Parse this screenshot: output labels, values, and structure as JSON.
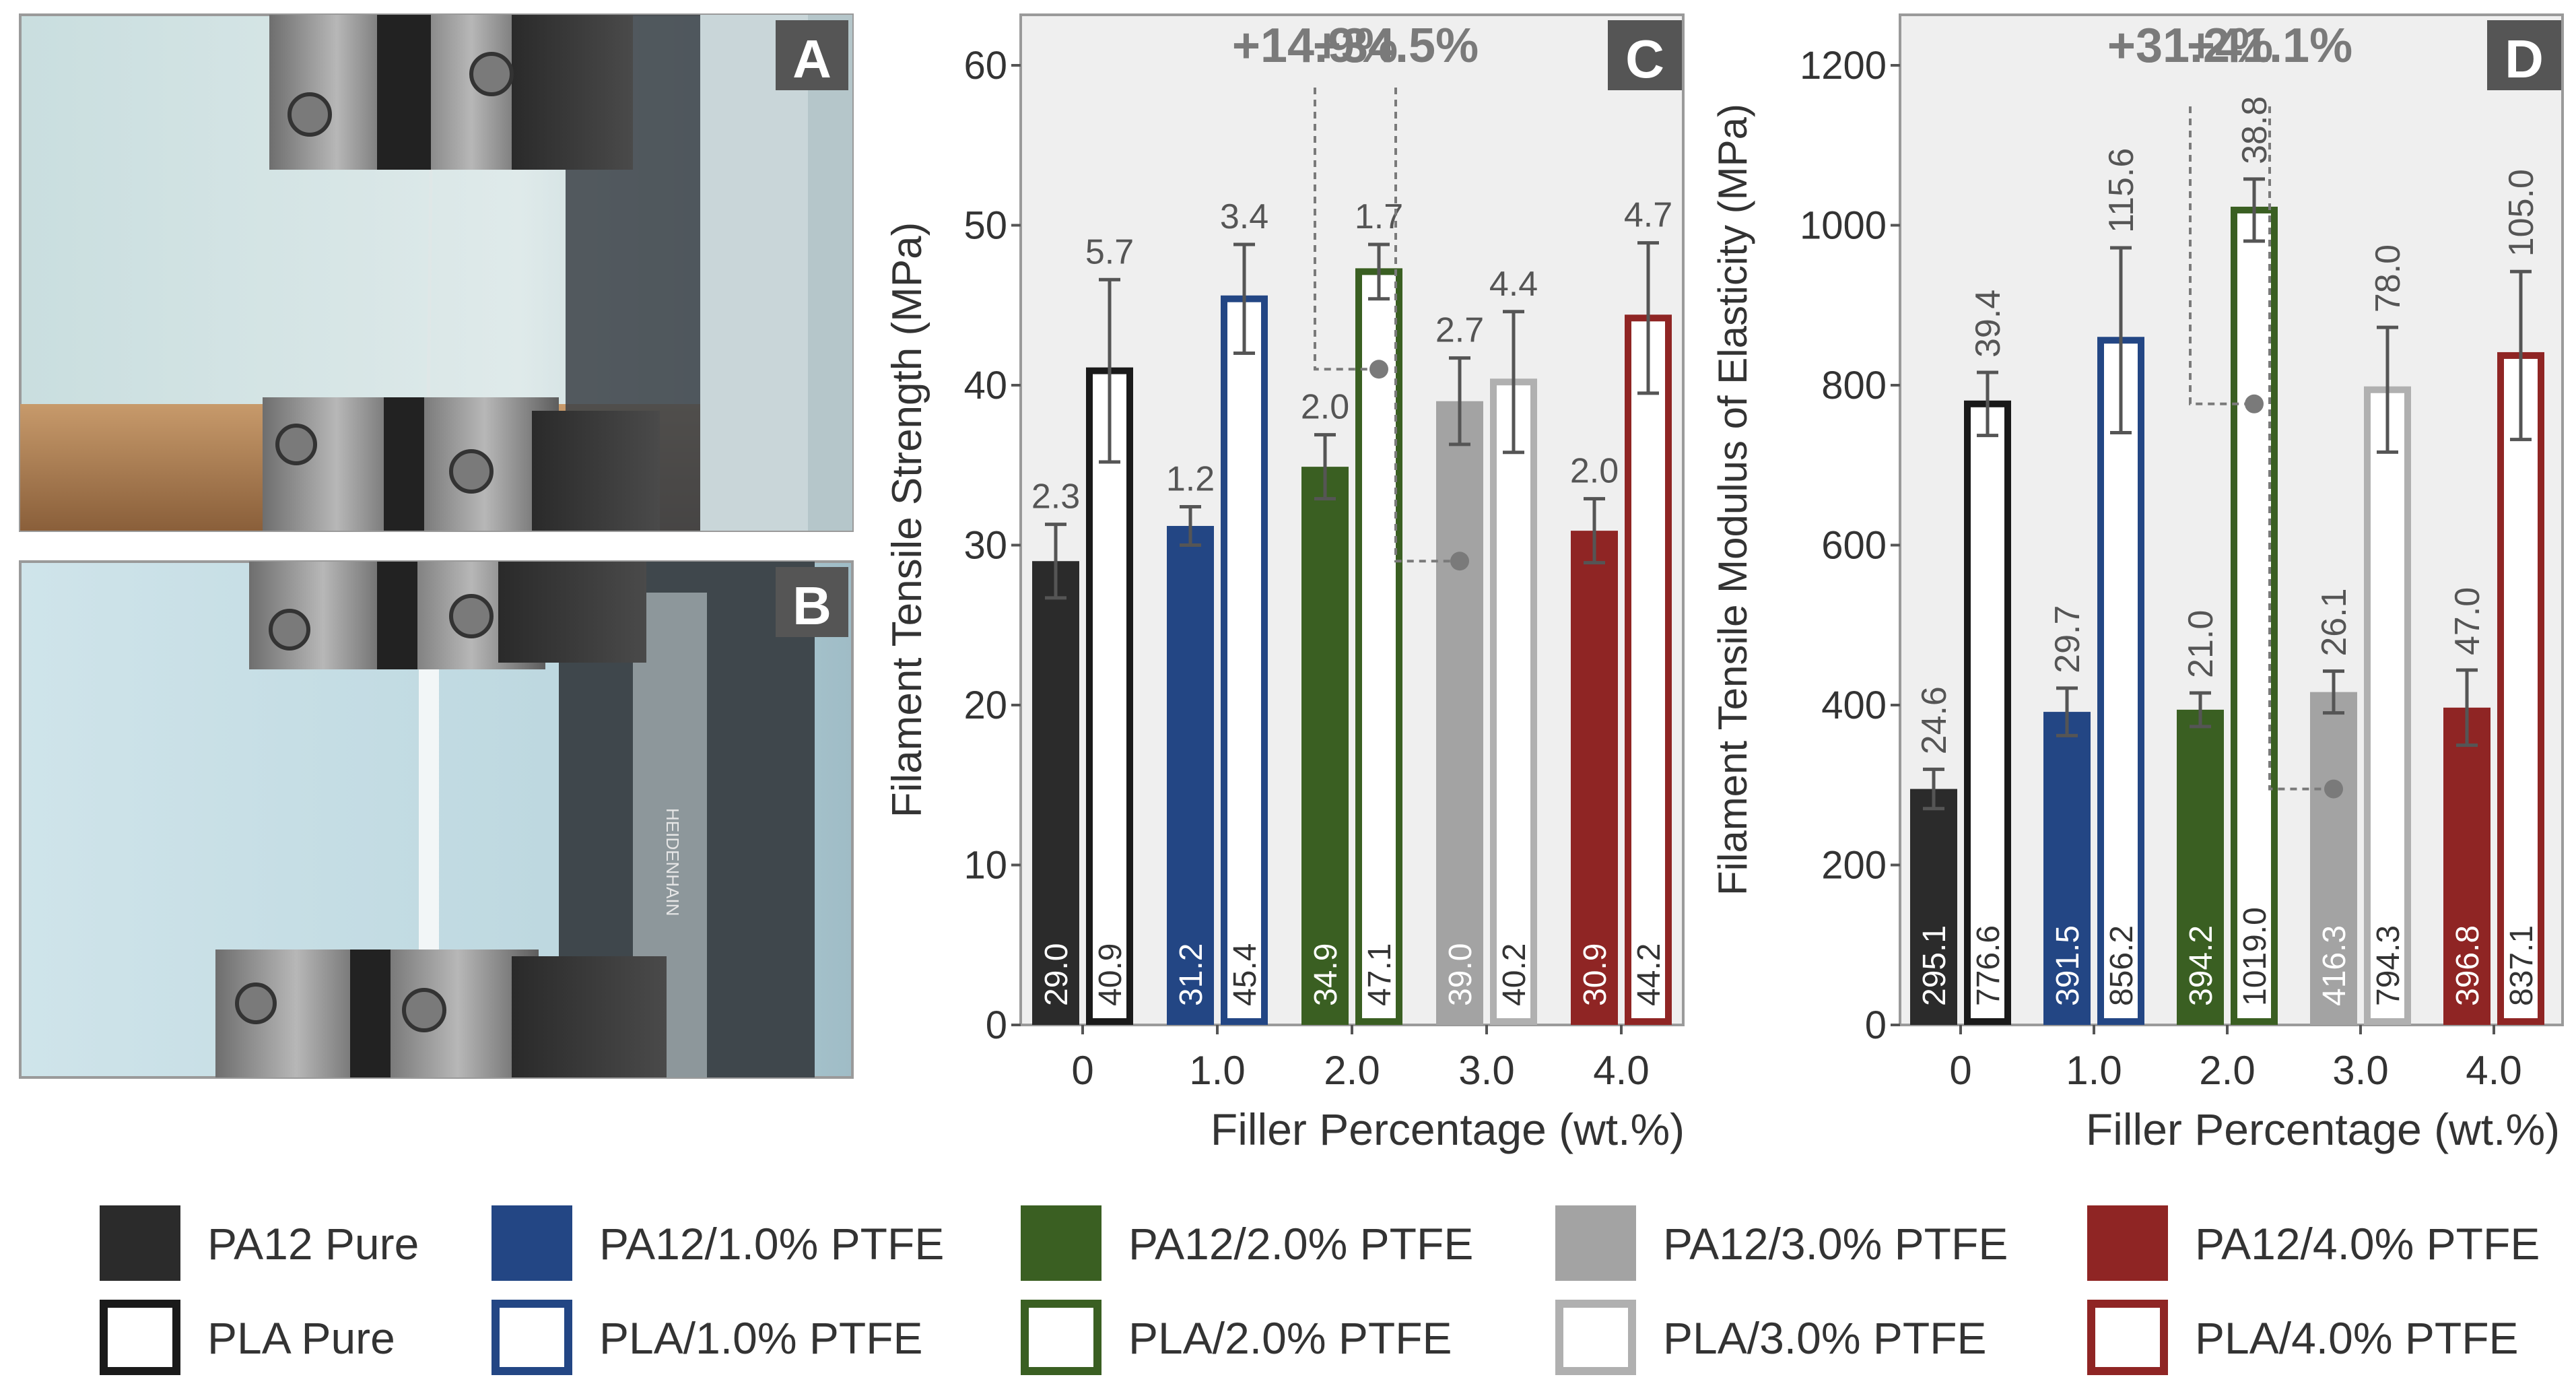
{
  "panels": {
    "photo_a": {
      "letter": "A"
    },
    "photo_b": {
      "letter": "B"
    },
    "photo_b_scale_label": "HEIDENHAIN"
  },
  "colors": {
    "PA12 Pure": "#2b2b2b",
    "PA12/1.0% PTFE": "#234684",
    "PA12/2.0% PTFE": "#3a5f22",
    "PA12/3.0% PTFE": "#a3a3a3",
    "PA12/4.0% PTFE": "#8f2524",
    "PLA Pure": "#1a1a1a",
    "PLA/1.0% PTFE": "#234684",
    "PLA/2.0% PTFE": "#3a5f22",
    "PLA/3.0% PTFE": "#b0b0b0",
    "PLA/4.0% PTFE": "#8f2524",
    "plot_bg": "#efefef",
    "annotation": "#7a7a7a"
  },
  "chart_data": [
    {
      "type": "bar",
      "panel_letter": "C",
      "xlabel": "Filler Percentage (wt.%)",
      "ylabel": "Filament Tensile Strength (MPa)",
      "categories": [
        "0",
        "1.0",
        "2.0",
        "3.0",
        "4.0"
      ],
      "ylim": [
        0,
        60
      ],
      "yticks": [
        "0",
        "10",
        "20",
        "30",
        "40",
        "50",
        "60"
      ],
      "series": [
        {
          "name": "PA12",
          "fill": "solid",
          "values": [
            29.0,
            31.2,
            34.9,
            39.0,
            30.9
          ],
          "value_labels": [
            "29.0",
            "31.2",
            "34.9",
            "39.0",
            "30.9"
          ],
          "errors": [
            2.3,
            1.2,
            2.0,
            2.7,
            2.0
          ],
          "error_labels": [
            "2.3",
            "1.2",
            "2.0",
            "2.7",
            "2.0"
          ]
        },
        {
          "name": "PLA",
          "fill": "outline",
          "values": [
            40.9,
            45.4,
            47.1,
            40.2,
            44.2
          ],
          "value_labels": [
            "40.9",
            "45.4",
            "47.1",
            "40.2",
            "44.2"
          ],
          "errors": [
            5.7,
            3.4,
            1.7,
            4.4,
            4.7
          ],
          "error_labels": [
            "5.7",
            "3.4",
            "1.7",
            "4.4",
            "4.7"
          ]
        }
      ],
      "annotations": [
        {
          "text": "+14.9%",
          "category": "2.0",
          "series": "PLA",
          "reference_value": 41.0
        },
        {
          "text": "+34.5%",
          "category": "3.0",
          "series": "PA12",
          "reference_value": 29.0
        }
      ]
    },
    {
      "type": "bar",
      "panel_letter": "D",
      "xlabel": "Filler Percentage (wt.%)",
      "ylabel": "Filament Tensile Modulus of Elasticity (MPa)",
      "categories": [
        "0",
        "1.0",
        "2.0",
        "3.0",
        "4.0"
      ],
      "ylim": [
        0,
        1200
      ],
      "yticks": [
        "0",
        "200",
        "400",
        "600",
        "800",
        "1000",
        "1200"
      ],
      "series": [
        {
          "name": "PA12",
          "fill": "solid",
          "values": [
            295.1,
            391.5,
            394.2,
            416.3,
            396.8
          ],
          "value_labels": [
            "295.1",
            "391.5",
            "394.2",
            "416.3",
            "396.8"
          ],
          "errors": [
            24.6,
            29.7,
            21.0,
            26.1,
            47.0
          ],
          "error_labels": [
            "24.6",
            "29.7",
            "21.0",
            "26.1",
            "47.0"
          ]
        },
        {
          "name": "PLA",
          "fill": "outline",
          "values": [
            776.6,
            856.2,
            1019.0,
            794.3,
            837.1
          ],
          "value_labels": [
            "776.6",
            "856.2",
            "1019.0",
            "794.3",
            "837.1"
          ],
          "errors": [
            39.4,
            115.6,
            38.8,
            78.0,
            105.0
          ],
          "error_labels": [
            "39.4",
            "115.6",
            "38.8",
            "78.0",
            "105.0"
          ]
        }
      ],
      "annotations": [
        {
          "text": "+31.2%",
          "category": "2.0",
          "series": "PLA",
          "reference_value": 776.6
        },
        {
          "text": "+41.1%",
          "category": "3.0",
          "series": "PA12",
          "reference_value": 295.1
        }
      ]
    }
  ],
  "legend": {
    "rows": [
      [
        {
          "label": "PA12 Pure",
          "fill": "solid"
        },
        {
          "label": "PA12/1.0% PTFE",
          "fill": "solid"
        },
        {
          "label": "PA12/2.0% PTFE",
          "fill": "solid"
        },
        {
          "label": "PA12/3.0% PTFE",
          "fill": "solid"
        },
        {
          "label": "PA12/4.0% PTFE",
          "fill": "solid"
        }
      ],
      [
        {
          "label": "PLA Pure",
          "fill": "outline"
        },
        {
          "label": "PLA/1.0% PTFE",
          "fill": "outline"
        },
        {
          "label": "PLA/2.0% PTFE",
          "fill": "outline"
        },
        {
          "label": "PLA/3.0% PTFE",
          "fill": "outline"
        },
        {
          "label": "PLA/4.0% PTFE",
          "fill": "outline"
        }
      ]
    ]
  }
}
